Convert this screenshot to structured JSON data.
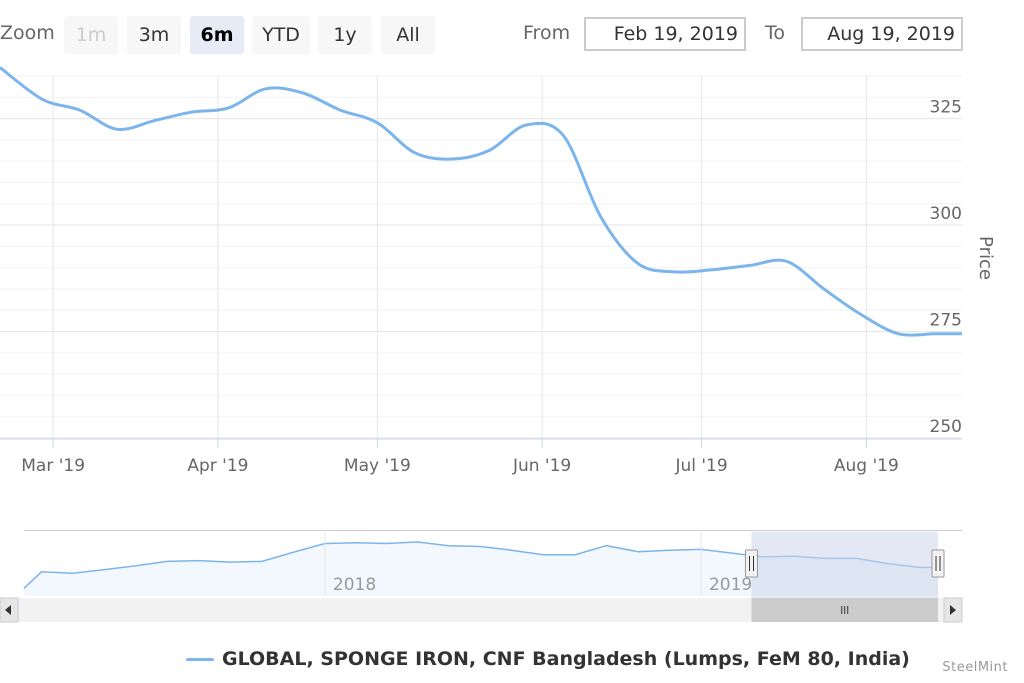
{
  "range_selector": {
    "zoom_label": "Zoom",
    "buttons": [
      "1m",
      "3m",
      "6m",
      "YTD",
      "1y",
      "All"
    ],
    "from_label": "From",
    "to_label": "To",
    "from_value": "Feb 19, 2019",
    "to_value": "Aug 19, 2019"
  },
  "legend": {
    "series_name": "GLOBAL, SPONGE IRON, CNF Bangladesh (Lumps, FeM 80, India)"
  },
  "credits": "SteelMint",
  "colors": {
    "series": "#7cb5ec",
    "navigator_mask": "#ccd6eb"
  },
  "chart_data": {
    "type": "line",
    "title": "",
    "ylabel": "Price",
    "ylim": [
      250,
      335
    ],
    "y_ticks": [
      250,
      275,
      300,
      325
    ],
    "x_tick_labels": [
      "Mar '19",
      "Apr '19",
      "May '19",
      "Jun '19",
      "Jul '19",
      "Aug '19"
    ],
    "x_ticks_dates": [
      "2019-03-01",
      "2019-04-01",
      "2019-05-01",
      "2019-06-01",
      "2019-07-01",
      "2019-08-01"
    ],
    "x_range": [
      "2019-02-19",
      "2019-08-19"
    ],
    "grid": true,
    "series": [
      {
        "name": "GLOBAL, SPONGE IRON, CNF Bangladesh (Lumps, FeM 80, India)",
        "x": [
          "2019-02-19",
          "2019-02-27",
          "2019-03-06",
          "2019-03-13",
          "2019-03-20",
          "2019-03-27",
          "2019-04-03",
          "2019-04-10",
          "2019-04-17",
          "2019-04-24",
          "2019-05-01",
          "2019-05-08",
          "2019-05-15",
          "2019-05-22",
          "2019-05-29",
          "2019-06-05",
          "2019-06-12",
          "2019-06-19",
          "2019-06-26",
          "2019-07-03",
          "2019-07-10",
          "2019-07-17",
          "2019-07-24",
          "2019-07-31",
          "2019-08-07",
          "2019-08-14",
          "2019-08-19"
        ],
        "values": [
          337,
          329.5,
          327,
          322.5,
          324.5,
          326.5,
          327.5,
          332,
          331,
          327,
          324,
          317,
          315.5,
          317.5,
          323.5,
          321,
          302,
          291,
          289,
          289.5,
          290.5,
          291.5,
          285,
          279,
          274.5,
          274.5,
          274.5
        ]
      }
    ],
    "navigator": {
      "x_labels": [
        "2018",
        "2019"
      ],
      "selected_range": [
        "2019-02-19",
        "2019-08-19"
      ],
      "x_range": [
        "2017-03-15",
        "2019-08-19"
      ],
      "series": {
        "x": [
          "2017-03-15",
          "2017-04-01",
          "2017-05-01",
          "2017-06-01",
          "2017-07-01",
          "2017-08-01",
          "2017-09-01",
          "2017-10-01",
          "2017-11-01",
          "2017-12-01",
          "2018-01-01",
          "2018-02-01",
          "2018-03-01",
          "2018-04-01",
          "2018-05-01",
          "2018-06-01",
          "2018-07-01",
          "2018-08-01",
          "2018-09-01",
          "2018-10-01",
          "2018-11-01",
          "2018-12-01",
          "2019-01-01",
          "2019-02-01",
          "2019-03-01",
          "2019-04-01",
          "2019-05-01",
          "2019-06-01",
          "2019-07-01",
          "2019-08-01",
          "2019-08-19"
        ],
        "values": [
          240,
          262,
          260,
          265,
          270,
          276,
          277,
          275,
          276,
          288,
          300,
          301,
          300,
          302,
          297,
          296,
          291,
          285,
          285,
          297,
          289,
          291,
          292,
          287,
          282,
          283,
          280,
          280,
          273,
          268,
          268
        ]
      }
    }
  }
}
